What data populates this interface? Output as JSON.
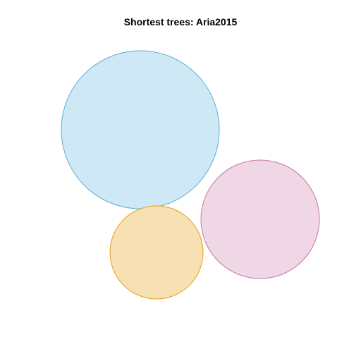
{
  "title": "Shortest trees: Aria2015",
  "circles": [
    {
      "id": "blue",
      "fill": "#cfe8f6",
      "stroke": "#5aaed7"
    },
    {
      "id": "pink",
      "fill": "#f0d7e5",
      "stroke": "#c479a3"
    },
    {
      "id": "orange",
      "fill": "#f7e0b4",
      "stroke": "#e39e1d"
    }
  ]
}
